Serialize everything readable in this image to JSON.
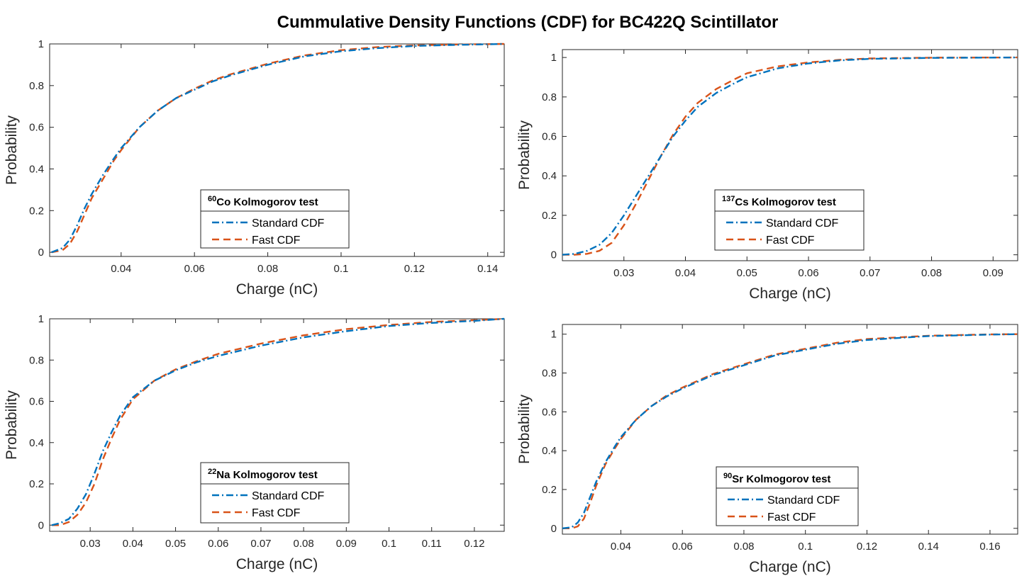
{
  "title": "Cummulative Density Functions (CDF) for BC422Q Scintillator",
  "colors": {
    "standard": "#0072BD",
    "fast": "#D95319",
    "axis": "#262626"
  },
  "chart_data": [
    {
      "type": "line",
      "isotope_mass": "60",
      "legend_title": "Co Kolmogorov test",
      "xlabel": "Charge (nC)",
      "ylabel": "Probability",
      "xlim": [
        0.0205,
        0.1445
      ],
      "ylim": [
        -0.02,
        1.0
      ],
      "xticks": [
        0.04,
        0.06,
        0.08,
        0.1,
        0.12,
        0.14
      ],
      "xtick_labels": [
        "0.04",
        "0.06",
        "0.08",
        "0.1",
        "0.12",
        "0.14"
      ],
      "yticks": [
        0,
        0.2,
        0.4,
        0.6,
        0.8,
        1
      ],
      "ytick_labels": [
        "0",
        "0.2",
        "0.4",
        "0.6",
        "0.8",
        "1"
      ],
      "series": [
        {
          "name": "Standard CDF",
          "x": [
            0.021,
            0.024,
            0.026,
            0.028,
            0.03,
            0.032,
            0.035,
            0.038,
            0.04,
            0.045,
            0.05,
            0.055,
            0.06,
            0.065,
            0.07,
            0.08,
            0.09,
            0.1,
            0.11,
            0.12,
            0.13,
            0.1445
          ],
          "y": [
            0.0,
            0.02,
            0.06,
            0.13,
            0.21,
            0.28,
            0.37,
            0.45,
            0.5,
            0.6,
            0.68,
            0.74,
            0.78,
            0.82,
            0.85,
            0.9,
            0.94,
            0.965,
            0.98,
            0.99,
            0.995,
            1.0
          ]
        },
        {
          "name": "Fast CDF",
          "x": [
            0.021,
            0.024,
            0.026,
            0.028,
            0.03,
            0.032,
            0.035,
            0.038,
            0.04,
            0.045,
            0.05,
            0.055,
            0.06,
            0.065,
            0.07,
            0.08,
            0.09,
            0.1,
            0.11,
            0.12,
            0.13,
            0.1445
          ],
          "y": [
            0.0,
            0.01,
            0.04,
            0.1,
            0.18,
            0.26,
            0.35,
            0.44,
            0.49,
            0.6,
            0.68,
            0.74,
            0.785,
            0.825,
            0.855,
            0.905,
            0.945,
            0.97,
            0.985,
            0.993,
            0.997,
            1.0
          ]
        }
      ]
    },
    {
      "type": "line",
      "isotope_mass": "137",
      "legend_title": "Cs Kolmogorov test",
      "xlabel": "Charge (nC)",
      "ylabel": "Probability",
      "xlim": [
        0.02,
        0.094
      ],
      "ylim": [
        -0.03,
        1.04
      ],
      "xticks": [
        0.03,
        0.04,
        0.05,
        0.06,
        0.07,
        0.08,
        0.09
      ],
      "xtick_labels": [
        "0.03",
        "0.04",
        "0.05",
        "0.06",
        "0.07",
        "0.08",
        "0.09"
      ],
      "yticks": [
        0,
        0.2,
        0.4,
        0.6,
        0.8,
        1
      ],
      "ytick_labels": [
        "0",
        "0.2",
        "0.4",
        "0.6",
        "0.8",
        "1"
      ],
      "series": [
        {
          "name": "Standard CDF",
          "x": [
            0.02,
            0.022,
            0.024,
            0.026,
            0.028,
            0.03,
            0.032,
            0.034,
            0.036,
            0.038,
            0.04,
            0.042,
            0.045,
            0.048,
            0.05,
            0.055,
            0.06,
            0.065,
            0.07,
            0.08,
            0.094
          ],
          "y": [
            0.0,
            0.005,
            0.02,
            0.05,
            0.11,
            0.2,
            0.3,
            0.4,
            0.5,
            0.6,
            0.68,
            0.75,
            0.82,
            0.87,
            0.9,
            0.945,
            0.97,
            0.985,
            0.993,
            0.998,
            1.0
          ]
        },
        {
          "name": "Fast CDF",
          "x": [
            0.02,
            0.022,
            0.024,
            0.026,
            0.028,
            0.03,
            0.032,
            0.034,
            0.036,
            0.038,
            0.04,
            0.042,
            0.045,
            0.048,
            0.05,
            0.055,
            0.06,
            0.065,
            0.07,
            0.08,
            0.094
          ],
          "y": [
            0.0,
            0.0,
            0.005,
            0.02,
            0.06,
            0.15,
            0.26,
            0.38,
            0.5,
            0.61,
            0.7,
            0.77,
            0.84,
            0.89,
            0.92,
            0.955,
            0.975,
            0.988,
            0.995,
            0.999,
            1.0
          ]
        }
      ]
    },
    {
      "type": "line",
      "isotope_mass": "22",
      "legend_title": "Na Kolmogorov test",
      "xlabel": "Charge (nC)",
      "ylabel": "Probability",
      "xlim": [
        0.0205,
        0.127
      ],
      "ylim": [
        -0.03,
        1.0
      ],
      "xticks": [
        0.03,
        0.04,
        0.05,
        0.06,
        0.07,
        0.08,
        0.09,
        0.1,
        0.11,
        0.12
      ],
      "xtick_labels": [
        "0.03",
        "0.04",
        "0.05",
        "0.06",
        "0.07",
        "0.08",
        "0.09",
        "0.1",
        "0.11",
        "0.12"
      ],
      "yticks": [
        0,
        0.2,
        0.4,
        0.6,
        0.8,
        1
      ],
      "ytick_labels": [
        "0",
        "0.2",
        "0.4",
        "0.6",
        "0.8",
        "1"
      ],
      "series": [
        {
          "name": "Standard CDF",
          "x": [
            0.021,
            0.023,
            0.025,
            0.027,
            0.029,
            0.031,
            0.033,
            0.035,
            0.037,
            0.04,
            0.045,
            0.05,
            0.055,
            0.06,
            0.07,
            0.08,
            0.09,
            0.1,
            0.11,
            0.12,
            0.127
          ],
          "y": [
            0.0,
            0.01,
            0.03,
            0.08,
            0.15,
            0.25,
            0.36,
            0.45,
            0.53,
            0.62,
            0.7,
            0.75,
            0.79,
            0.82,
            0.87,
            0.91,
            0.94,
            0.965,
            0.98,
            0.99,
            1.0
          ]
        },
        {
          "name": "Fast CDF",
          "x": [
            0.021,
            0.023,
            0.025,
            0.027,
            0.029,
            0.031,
            0.033,
            0.035,
            0.037,
            0.04,
            0.045,
            0.05,
            0.055,
            0.06,
            0.07,
            0.08,
            0.09,
            0.1,
            0.11,
            0.12,
            0.127
          ],
          "y": [
            0.0,
            0.0,
            0.015,
            0.05,
            0.11,
            0.2,
            0.32,
            0.42,
            0.51,
            0.61,
            0.7,
            0.755,
            0.795,
            0.83,
            0.88,
            0.92,
            0.95,
            0.97,
            0.985,
            0.993,
            1.0
          ]
        }
      ]
    },
    {
      "type": "line",
      "isotope_mass": "90",
      "legend_title": "Sr Kolmogorov test",
      "xlabel": "Charge (nC)",
      "ylabel": "Probability",
      "xlim": [
        0.021,
        0.169
      ],
      "ylim": [
        -0.03,
        1.05
      ],
      "xticks": [
        0.04,
        0.06,
        0.08,
        0.1,
        0.12,
        0.14,
        0.16
      ],
      "xtick_labels": [
        "0.04",
        "0.06",
        "0.08",
        "0.1",
        "0.12",
        "0.14",
        "0.16"
      ],
      "yticks": [
        0,
        0.2,
        0.4,
        0.6,
        0.8,
        1
      ],
      "ytick_labels": [
        "0",
        "0.2",
        "0.4",
        "0.6",
        "0.8",
        "1"
      ],
      "series": [
        {
          "name": "Standard CDF",
          "x": [
            0.021,
            0.024,
            0.026,
            0.028,
            0.03,
            0.032,
            0.035,
            0.038,
            0.04,
            0.045,
            0.05,
            0.055,
            0.06,
            0.07,
            0.08,
            0.09,
            0.1,
            0.11,
            0.12,
            0.14,
            0.16,
            0.169
          ],
          "y": [
            0.0,
            0.005,
            0.03,
            0.08,
            0.16,
            0.24,
            0.34,
            0.42,
            0.47,
            0.56,
            0.63,
            0.68,
            0.72,
            0.79,
            0.84,
            0.89,
            0.92,
            0.95,
            0.97,
            0.99,
            0.998,
            1.0
          ]
        },
        {
          "name": "Fast CDF",
          "x": [
            0.021,
            0.024,
            0.026,
            0.028,
            0.03,
            0.032,
            0.035,
            0.038,
            0.04,
            0.045,
            0.05,
            0.055,
            0.06,
            0.07,
            0.08,
            0.09,
            0.1,
            0.11,
            0.12,
            0.14,
            0.16,
            0.169
          ],
          "y": [
            0.0,
            0.0,
            0.01,
            0.05,
            0.13,
            0.22,
            0.33,
            0.41,
            0.46,
            0.56,
            0.63,
            0.685,
            0.725,
            0.795,
            0.845,
            0.895,
            0.925,
            0.955,
            0.975,
            0.992,
            0.999,
            1.0
          ]
        }
      ]
    }
  ]
}
